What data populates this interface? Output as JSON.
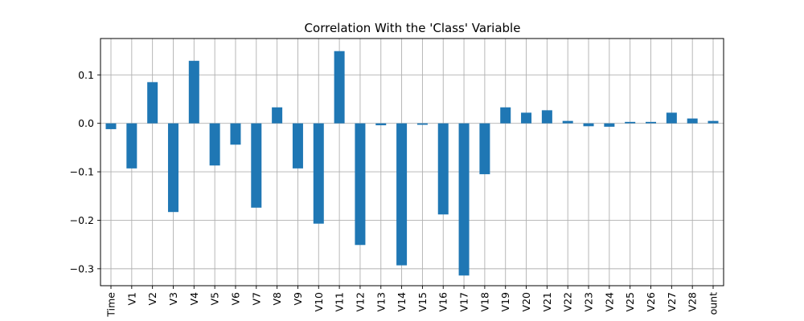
{
  "chart_data": {
    "type": "bar",
    "title": "Correlation With the 'Class' Variable",
    "xlabel": "",
    "ylabel": "",
    "categories": [
      "Time",
      "V1",
      "V2",
      "V3",
      "V4",
      "V5",
      "V6",
      "V7",
      "V8",
      "V9",
      "V10",
      "V11",
      "V12",
      "V13",
      "V14",
      "V15",
      "V16",
      "V17",
      "V18",
      "V19",
      "V20",
      "V21",
      "V22",
      "V23",
      "V24",
      "V25",
      "V26",
      "V27",
      "V28",
      "ount"
    ],
    "values": [
      -0.012,
      -0.093,
      0.085,
      -0.183,
      0.129,
      -0.087,
      -0.044,
      -0.174,
      0.033,
      -0.093,
      -0.207,
      0.149,
      -0.251,
      -0.004,
      -0.293,
      -0.003,
      -0.188,
      -0.314,
      -0.105,
      0.033,
      0.022,
      0.027,
      0.005,
      -0.006,
      -0.007,
      0.003,
      0.003,
      0.022,
      0.01,
      0.005
    ],
    "ylim": [
      -0.335,
      0.175
    ],
    "yticks": [
      -0.3,
      -0.2,
      -0.1,
      0.0,
      0.1
    ],
    "ytick_labels": [
      "−0.3",
      "−0.2",
      "−0.1",
      "0.0",
      "0.1"
    ],
    "grid": true,
    "bar_color": "#1f77b4"
  }
}
